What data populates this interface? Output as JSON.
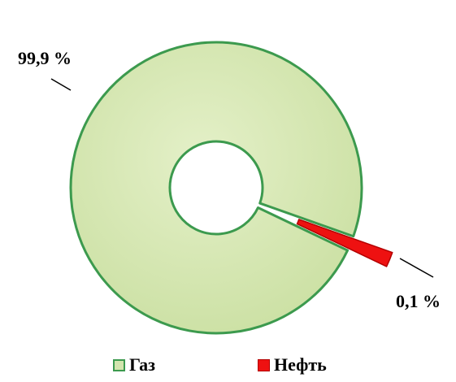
{
  "chart_data": {
    "type": "pie",
    "variant": "donut",
    "title": "",
    "legend_placement": "bottom",
    "slices": [
      {
        "label": "Газ",
        "value": 99.9,
        "display": "99,9 %",
        "color": "#d3e5ae",
        "edge": "#3c9a4e",
        "exploded": false
      },
      {
        "label": "Нефть",
        "value": 0.1,
        "display": "0,1 %",
        "color": "#ee1111",
        "edge": "#b30000",
        "exploded": true
      }
    ]
  }
}
